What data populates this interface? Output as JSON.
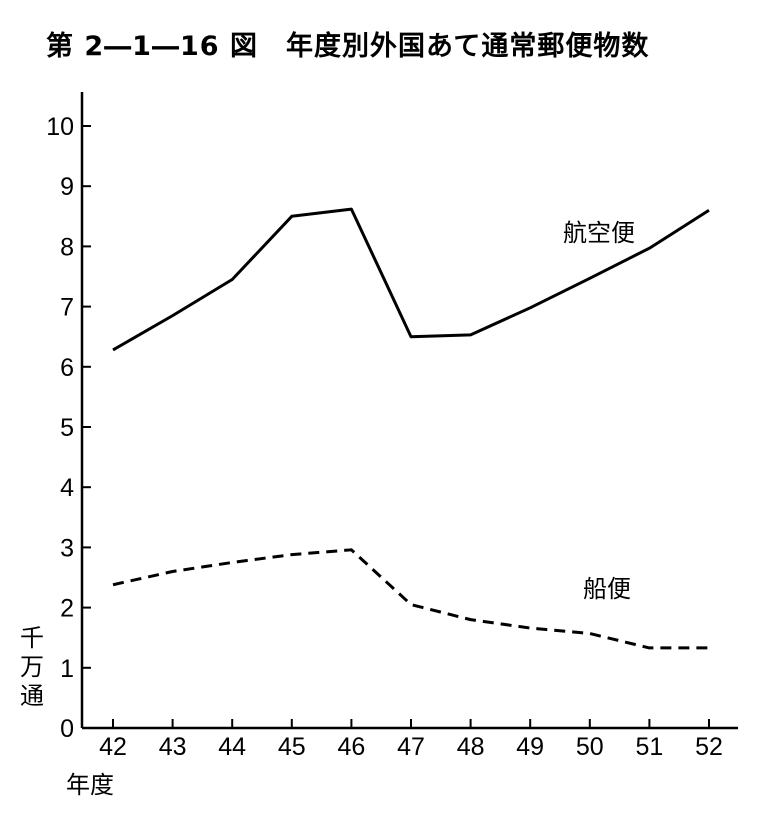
{
  "chart_data": {
    "type": "line",
    "title": "第 2―1―16 図　年度別外国あて通常郵便物数",
    "categories": [
      "42",
      "43",
      "44",
      "45",
      "46",
      "47",
      "48",
      "49",
      "50",
      "51",
      "52"
    ],
    "series": [
      {
        "name": "航空便",
        "values": [
          6.28,
          6.85,
          7.45,
          8.5,
          8.62,
          6.5,
          6.53,
          6.98,
          7.47,
          7.97,
          8.6
        ],
        "style": "solid"
      },
      {
        "name": "船便",
        "values": [
          2.38,
          2.6,
          2.75,
          2.88,
          2.96,
          2.05,
          1.8,
          1.66,
          1.57,
          1.33,
          1.33
        ],
        "style": "dashed"
      }
    ],
    "ylabel": "千万通",
    "xlabel": "年度",
    "ylim": [
      0,
      10.6
    ],
    "yticks": [
      0,
      1,
      2,
      3,
      4,
      5,
      6,
      7,
      8,
      9,
      10
    ],
    "grid": false,
    "colors": {
      "line": "#000000",
      "background": "#ffffff"
    }
  }
}
